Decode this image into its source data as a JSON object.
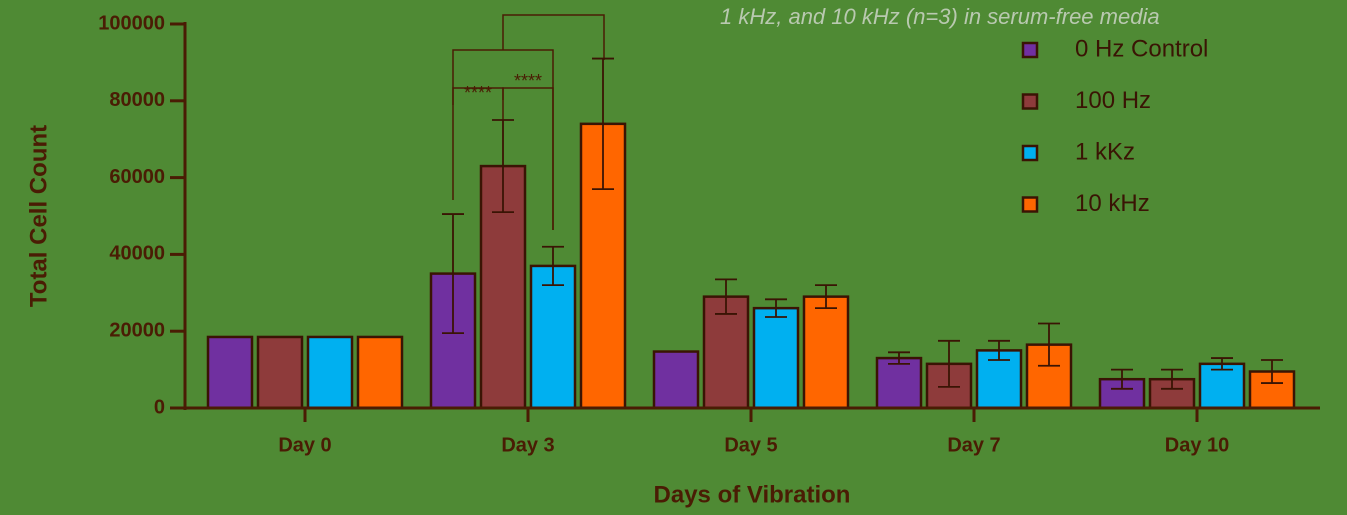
{
  "chart_data": {
    "type": "bar",
    "title": "1 kHz, and 10 kHz (n=3) in serum-free media",
    "x_label": "Days of Vibration",
    "y_label": "Total Cell Count",
    "categories": [
      "Day 0",
      "Day 3",
      "Day 5",
      "Day 7",
      "Day 10"
    ],
    "series": [
      {
        "name": "0 Hz Control",
        "color": "#7030a0",
        "values": [
          18500,
          35000,
          14700,
          13000,
          7500
        ],
        "errors": [
          null,
          15500,
          null,
          1500,
          2500
        ]
      },
      {
        "name": "100 Hz",
        "color": "#8e3b3b",
        "values": [
          18500,
          63000,
          29000,
          11500,
          7500
        ],
        "errors": [
          null,
          12000,
          4500,
          6000,
          2500
        ]
      },
      {
        "name": "1 kKz",
        "color": "#00b0f0",
        "values": [
          18500,
          37000,
          26000,
          15000,
          11500
        ],
        "errors": [
          null,
          5000,
          2300,
          2500,
          1500
        ]
      },
      {
        "name": "10 kHz",
        "color": "#ff6600",
        "values": [
          18500,
          74000,
          29000,
          16500,
          9500
        ],
        "errors": [
          null,
          17000,
          3000,
          5500,
          3000
        ]
      }
    ],
    "ylim": [
      0,
      100000
    ],
    "yticks": [
      0,
      20000,
      40000,
      60000,
      80000,
      100000
    ],
    "annotations": [
      "****",
      "****"
    ]
  }
}
